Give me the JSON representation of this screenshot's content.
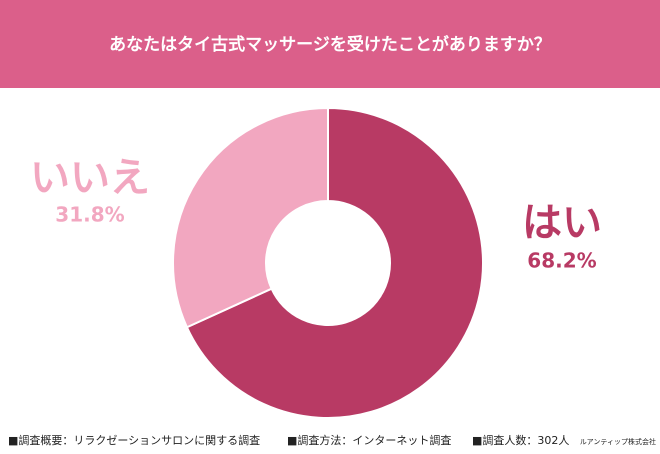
{
  "chart_data": {
    "type": "pie",
    "title": "あなたはタイ古式マッサージを受けたことがありますか？",
    "categories": [
      "はい",
      "いいえ"
    ],
    "values": [
      68.2,
      31.8
    ],
    "value_labels": [
      "68.2%",
      "31.8%"
    ],
    "colors": [
      "#b83a64",
      "#f2a7c0"
    ],
    "donut": true
  },
  "footer": {
    "items": [
      "■調査概要：リラクゼーションサロンに関する調査",
      "■調査方法：インターネット調査",
      "■調査人数：302人"
    ],
    "company": "ルアンティップ株式会社"
  }
}
